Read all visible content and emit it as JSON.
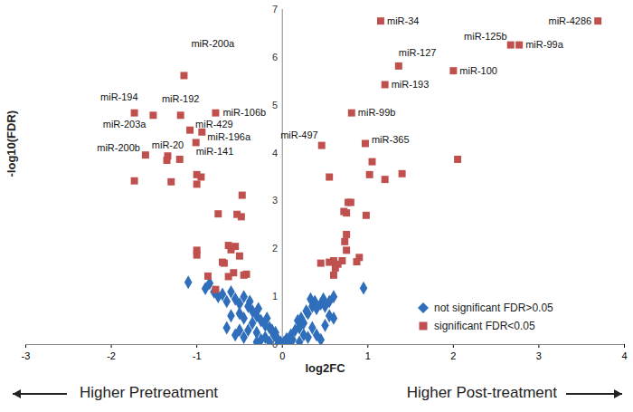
{
  "chart_data": {
    "type": "scatter",
    "x_label": "log2FC",
    "y_label": "-log10(FDR)",
    "xlim": [
      -3,
      4
    ],
    "ylim": [
      0,
      7
    ],
    "xticks": [
      -3,
      -2,
      -1,
      0,
      1,
      2,
      3,
      4
    ],
    "yticks": [
      0,
      1,
      2,
      3,
      4,
      5,
      6,
      7
    ],
    "grid": false,
    "legend": "lower right",
    "series": [
      {
        "name": "not significant FDR>0.05",
        "color": "#2f6eba",
        "marker": "diamond",
        "values": [
          [
            -1.1,
            1.3
          ],
          [
            -0.9,
            1.17
          ],
          [
            -0.85,
            1.28
          ],
          [
            -0.8,
            1.1
          ],
          [
            -0.75,
            1.0
          ],
          [
            -0.7,
            1.05
          ],
          [
            -0.65,
            0.9
          ],
          [
            -0.6,
            1.1
          ],
          [
            -0.55,
            0.95
          ],
          [
            -0.5,
            0.85
          ],
          [
            -0.45,
            1.0
          ],
          [
            -0.4,
            0.8
          ],
          [
            -0.35,
            0.7
          ],
          [
            -0.5,
            0.65
          ],
          [
            -0.6,
            0.6
          ],
          [
            -0.45,
            0.55
          ],
          [
            -0.3,
            0.6
          ],
          [
            -0.25,
            0.5
          ],
          [
            -0.35,
            0.45
          ],
          [
            -0.2,
            0.4
          ],
          [
            -0.15,
            0.35
          ],
          [
            -0.4,
            0.3
          ],
          [
            -0.3,
            0.25
          ],
          [
            -0.1,
            0.2
          ],
          [
            -0.2,
            0.15
          ],
          [
            -0.05,
            0.1
          ],
          [
            -0.15,
            0.05
          ],
          [
            -0.25,
            0.1
          ],
          [
            -0.08,
            0.25
          ],
          [
            -0.5,
            0.3
          ],
          [
            -0.65,
            0.35
          ],
          [
            -0.55,
            0.2
          ],
          [
            -0.45,
            0.15
          ],
          [
            -0.3,
            0.05
          ],
          [
            -0.12,
            0.3
          ],
          [
            -0.18,
            0.55
          ],
          [
            -0.28,
            0.75
          ],
          [
            -0.38,
            0.9
          ],
          [
            -0.05,
            0.02
          ],
          [
            -0.02,
            0.05
          ],
          [
            0.02,
            0.05
          ],
          [
            0.05,
            0.12
          ],
          [
            0.08,
            0.03
          ],
          [
            0.1,
            0.2
          ],
          [
            0.12,
            0.1
          ],
          [
            0.15,
            0.3
          ],
          [
            0.2,
            0.35
          ],
          [
            0.18,
            0.5
          ],
          [
            0.22,
            0.55
          ],
          [
            0.25,
            0.45
          ],
          [
            0.28,
            0.7
          ],
          [
            0.3,
            0.65
          ],
          [
            0.35,
            0.8
          ],
          [
            0.33,
            0.95
          ],
          [
            0.38,
            0.9
          ],
          [
            0.4,
            0.75
          ],
          [
            0.45,
            0.85
          ],
          [
            0.48,
            0.95
          ],
          [
            0.5,
            0.8
          ],
          [
            0.55,
            0.9
          ],
          [
            0.6,
            1.0
          ],
          [
            0.55,
            0.6
          ],
          [
            0.6,
            0.55
          ],
          [
            0.5,
            0.4
          ],
          [
            0.4,
            0.2
          ],
          [
            0.3,
            0.15
          ],
          [
            0.95,
            1.18
          ],
          [
            0.2,
            0.05
          ],
          [
            0.45,
            0.1
          ],
          [
            0.35,
            0.35
          ],
          [
            0.25,
            0.2
          ]
        ]
      },
      {
        "name": "significant FDR<0.05",
        "color": "#c0504d",
        "marker": "square",
        "values": [
          [
            1.15,
            6.76
          ],
          [
            3.69,
            6.76
          ],
          [
            2.67,
            6.26
          ],
          [
            2.77,
            6.26
          ],
          [
            1.36,
            5.82
          ],
          [
            2.0,
            5.72
          ],
          [
            1.2,
            5.43
          ],
          [
            0.81,
            4.84
          ],
          [
            0.46,
            4.16
          ],
          [
            0.97,
            4.2
          ],
          [
            -1.15,
            5.62
          ],
          [
            -1.73,
            4.84
          ],
          [
            -1.19,
            4.79
          ],
          [
            -0.78,
            4.84
          ],
          [
            -1.51,
            4.79
          ],
          [
            -1.08,
            4.48
          ],
          [
            -0.94,
            4.44
          ],
          [
            -1.01,
            4.22
          ],
          [
            -1.6,
            3.96
          ],
          [
            -1.34,
            3.94
          ],
          [
            -1.73,
            3.42
          ],
          [
            -1.35,
            3.85
          ],
          [
            -1.2,
            3.87
          ],
          [
            -1.3,
            3.4
          ],
          [
            -1.0,
            3.55
          ],
          [
            -0.95,
            3.5
          ],
          [
            -1.0,
            3.35
          ],
          [
            -0.47,
            3.12
          ],
          [
            -0.75,
            2.73
          ],
          [
            -0.53,
            2.72
          ],
          [
            -0.48,
            2.67
          ],
          [
            -1.0,
            1.97
          ],
          [
            -1.0,
            1.87
          ],
          [
            -0.63,
            2.07
          ],
          [
            -0.55,
            2.05
          ],
          [
            -0.6,
            1.98
          ],
          [
            -0.7,
            1.72
          ],
          [
            -0.68,
            1.7
          ],
          [
            -0.5,
            1.85
          ],
          [
            -0.87,
            1.43
          ],
          [
            -0.57,
            1.5
          ],
          [
            -0.45,
            1.45
          ],
          [
            -0.42,
            1.47
          ],
          [
            -0.63,
            1.42
          ],
          [
            -0.78,
            1.15
          ],
          [
            0.55,
            3.5
          ],
          [
            1.05,
            3.82
          ],
          [
            1.02,
            3.55
          ],
          [
            1.2,
            3.45
          ],
          [
            1.4,
            3.57
          ],
          [
            2.05,
            3.87
          ],
          [
            0.77,
            2.97
          ],
          [
            0.8,
            2.97
          ],
          [
            0.98,
            2.7
          ],
          [
            0.72,
            2.78
          ],
          [
            0.75,
            2.75
          ],
          [
            0.75,
            2.3
          ],
          [
            0.73,
            2.15
          ],
          [
            0.75,
            1.97
          ],
          [
            0.7,
            1.75
          ],
          [
            0.45,
            1.7
          ],
          [
            0.55,
            1.72
          ],
          [
            0.6,
            1.75
          ],
          [
            0.65,
            1.68
          ],
          [
            0.62,
            1.6
          ],
          [
            0.6,
            1.45
          ],
          [
            0.9,
            1.82
          ],
          [
            0.87,
            1.73
          ]
        ]
      }
    ],
    "annotations": [
      {
        "text": "miR-34",
        "x": 1.15,
        "y": 6.76
      },
      {
        "text": "miR-4286",
        "x": 3.69,
        "y": 6.76
      },
      {
        "text": "miR-125b",
        "x": 2.67,
        "y": 6.26
      },
      {
        "text": "miR-99a",
        "x": 2.77,
        "y": 6.26
      },
      {
        "text": "miR-127",
        "x": 1.36,
        "y": 5.82
      },
      {
        "text": "miR-100",
        "x": 2.0,
        "y": 5.72
      },
      {
        "text": "miR-193",
        "x": 1.2,
        "y": 5.43
      },
      {
        "text": "miR-99b",
        "x": 0.81,
        "y": 4.84
      },
      {
        "text": "miR-497",
        "x": 0.46,
        "y": 4.16
      },
      {
        "text": "miR-365",
        "x": 0.97,
        "y": 4.2
      },
      {
        "text": "miR-200a",
        "x": -1.15,
        "y": 5.62
      },
      {
        "text": "miR-194",
        "x": -1.73,
        "y": 4.84
      },
      {
        "text": "miR-192",
        "x": -1.19,
        "y": 4.79
      },
      {
        "text": "miR-106b",
        "x": -0.78,
        "y": 4.84
      },
      {
        "text": "miR-203a",
        "x": -1.51,
        "y": 4.79
      },
      {
        "text": "miR-429",
        "x": -1.08,
        "y": 4.48
      },
      {
        "text": "miR-196a",
        "x": -0.94,
        "y": 4.44
      },
      {
        "text": "miR-141",
        "x": -1.01,
        "y": 4.22
      },
      {
        "text": "miR-200b",
        "x": -1.6,
        "y": 3.96
      },
      {
        "text": "miR-20",
        "x": -1.34,
        "y": 3.94
      }
    ],
    "x_direction_labels": [
      "Higher Pretreatment",
      "Higher Post-treatment"
    ]
  }
}
